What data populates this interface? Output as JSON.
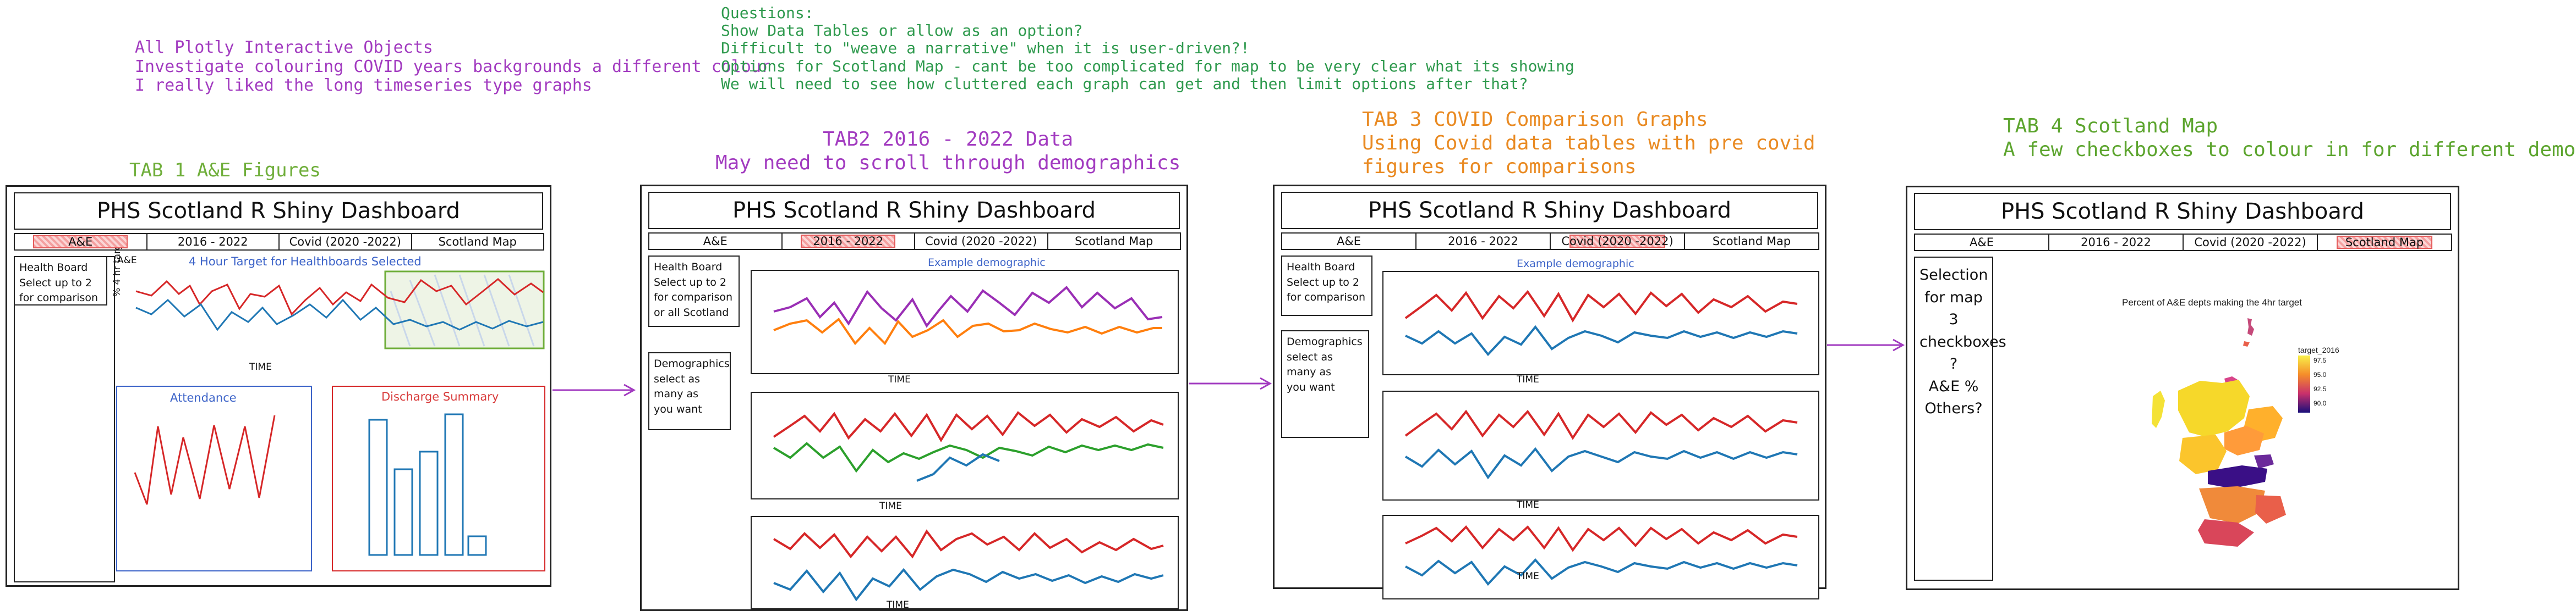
{
  "notes": {
    "general": [
      "All Plotly Interactive Objects",
      "Investigate colouring COVID years backgrounds a different colour",
      "I really liked the long timeseries type graphs"
    ],
    "questions": [
      "Questions:",
      "Show Data Tables or allow as an option?",
      "Difficult to \"weave a narrative\" when it is user-driven?!",
      "Options for Scotland Map - cant be too complicated for map to be very clear what its showing",
      "We will need to see how cluttered each graph can get and then limit options after that?"
    ]
  },
  "tab_notes": {
    "tab1": [
      "TAB 1 A&E Figures"
    ],
    "tab2": [
      "TAB2 2016 - 2022 Data",
      "May need to scroll through demographics"
    ],
    "tab3": [
      "TAB 3 COVID Comparison Graphs",
      "Using Covid data tables with pre covid",
      "figures for comparisons"
    ],
    "tab4": [
      "TAB 4 Scotland Map",
      "A few checkboxes to colour in for different demographics"
    ]
  },
  "dashboard": {
    "title": "PHS Scotland R Shiny Dashboard",
    "tabs": [
      "A&E",
      "2016 - 2022",
      "Covid (2020 -2022)",
      "Scotland Map"
    ]
  },
  "mock1": {
    "sidebar": [
      "Health Board",
      "Select up to 2",
      "for comparison"
    ],
    "chart_title": "4 Hour Target for Healthboards Selected",
    "chart_corner": "A&E",
    "y_label": "% 4 hr target",
    "x_label": "TIME",
    "attendance_title": "Attendance",
    "discharge_title": "Discharge Summary"
  },
  "mock2": {
    "sidebar1": [
      "Health Board",
      "Select up to 2",
      "for comparison",
      "or all Scotland"
    ],
    "sidebar2": [
      "Demographics",
      "select as",
      "many as",
      "you want"
    ],
    "demo_title": "Example demographic",
    "x_label": "TIME"
  },
  "mock3": {
    "sidebar1": [
      "Health Board",
      "Select up to 2",
      "for comparison"
    ],
    "sidebar2": [
      "Demographics",
      "select as",
      "many as",
      "you want"
    ],
    "demo_title": "Example demographic",
    "x_label": "TIME"
  },
  "mock4": {
    "sidebar": [
      "Selection",
      "for map",
      "3",
      "checkboxes",
      "?",
      "A&E %",
      "Others?"
    ],
    "map_title": "Percent of A&E depts making the 4hr target",
    "legend_title": "target_2016",
    "legend_ticks": [
      "97.5",
      "95.0",
      "92.5",
      "90.0"
    ]
  },
  "colors": {
    "red": "#d62728",
    "blue": "#1f77b4",
    "purple": "#9a2fb5",
    "orange": "#ff7f0e",
    "green": "#2ca02c",
    "pink_highlight": "#f4a0a0"
  }
}
